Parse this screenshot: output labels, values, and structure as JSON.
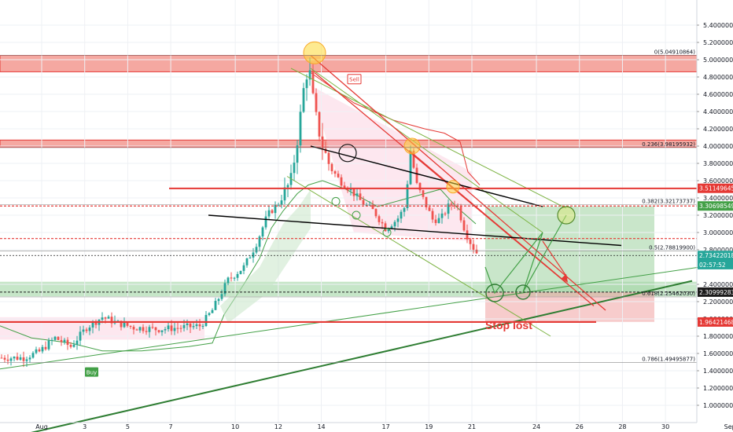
{
  "chart_data": {
    "type": "candlestick",
    "y_axis": {
      "ticks": [
        "5.40000000",
        "5.20000000",
        "5.00000000",
        "4.80000000",
        "4.60000000",
        "4.40000000",
        "4.20000000",
        "4.00000000",
        "3.80000000",
        "3.60000000",
        "3.40000000",
        "3.20000000",
        "3.00000000",
        "2.80000000",
        "2.40000000",
        "2.20000000",
        "2.00000000",
        "1.80000000",
        "1.60000000",
        "1.40000000",
        "1.20000000",
        "1.00000000"
      ],
      "ylim": [
        0.94,
        5.52
      ]
    },
    "x_axis": {
      "ticks": [
        "Aug",
        "3",
        "5",
        "7",
        "10",
        "12",
        "14",
        "17",
        "19",
        "21",
        "24",
        "26",
        "28",
        "30",
        "Sep"
      ]
    },
    "fib_levels": [
      {
        "label": "0(5.04910864)",
        "price": 5.0491
      },
      {
        "label": "0.236(3.98195932)",
        "price": 3.982
      },
      {
        "label": "0.382(3.32173737)",
        "price": 3.3217
      },
      {
        "label": "0.5(2.78819900)",
        "price": 2.7882
      },
      {
        "label": "0.618(2.25462030)",
        "price": 2.2546
      },
      {
        "label": "0.786(1.49495877)",
        "price": 1.495
      }
    ],
    "price_tags": [
      {
        "text": "3.51149645",
        "price": 3.5115,
        "color": "#e53935"
      },
      {
        "text": "3.30698549",
        "price": 3.307,
        "color": "#43a047"
      },
      {
        "text": "2.73422018",
        "price": 2.7342,
        "color": "#26a69a"
      },
      {
        "text": "02:57:52",
        "price": 2.628,
        "color": "#26a69a"
      },
      {
        "text": "2.30999283",
        "price": 2.31,
        "color": "#1b1b1b"
      },
      {
        "text": "1.96421468",
        "price": 1.9642,
        "color": "#e53935"
      }
    ],
    "annotations": [
      {
        "text": "Sell",
        "color": "#e53935"
      },
      {
        "text": "Buy",
        "color": "#43a047"
      },
      {
        "text": "Stop lost",
        "color": "#e53935"
      }
    ],
    "colors": {
      "up": "#26a69a",
      "down": "#ef5350",
      "resistance": "#e53935",
      "support": "#43a047",
      "trend": "#000000"
    }
  }
}
